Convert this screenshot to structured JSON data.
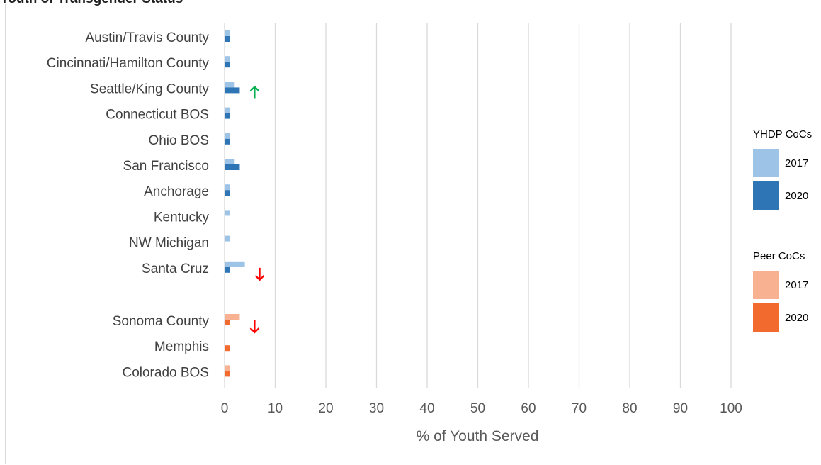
{
  "chart_data": {
    "type": "bar",
    "orientation": "horizontal",
    "title": "",
    "xlabel": "% of Youth Served",
    "ylabel": "",
    "xlim": [
      0,
      100
    ],
    "xticks": [
      "0",
      "10",
      "20",
      "30",
      "40",
      "50",
      "60",
      "70",
      "80",
      "90",
      "100"
    ],
    "grid": true,
    "legend_position": "right",
    "groups": [
      {
        "name": "YHDP CoCs",
        "series": [
          {
            "name": "2017",
            "color": "#9dc3e6"
          },
          {
            "name": "2020",
            "color": "#2e75b6"
          }
        ],
        "categories": [
          {
            "label": "Austin/Travis County",
            "v2017": 1,
            "v2020": 1,
            "trend": ""
          },
          {
            "label": "Cincinnati/Hamilton County",
            "v2017": 1,
            "v2020": 1,
            "trend": ""
          },
          {
            "label": "Seattle/King County",
            "v2017": 2,
            "v2020": 3,
            "trend": "up"
          },
          {
            "label": "Connecticut BOS",
            "v2017": 1,
            "v2020": 1,
            "trend": ""
          },
          {
            "label": "Ohio BOS",
            "v2017": 1,
            "v2020": 1,
            "trend": ""
          },
          {
            "label": "San Francisco",
            "v2017": 2,
            "v2020": 3,
            "trend": ""
          },
          {
            "label": "Anchorage",
            "v2017": 1,
            "v2020": 1,
            "trend": ""
          },
          {
            "label": "Kentucky",
            "v2017": 1,
            "v2020": 0,
            "trend": ""
          },
          {
            "label": "NW Michigan",
            "v2017": 1,
            "v2020": 0,
            "trend": ""
          },
          {
            "label": "Santa Cruz",
            "v2017": 4,
            "v2020": 1,
            "trend": "down"
          }
        ]
      },
      {
        "name": "Peer CoCs",
        "series": [
          {
            "name": "2017",
            "color": "#f8b191"
          },
          {
            "name": "2020",
            "color": "#f26a2e"
          }
        ],
        "categories": [
          {
            "label": "Sonoma County",
            "v2017": 3,
            "v2020": 1,
            "trend": "down"
          },
          {
            "label": "Memphis",
            "v2017": 0,
            "v2020": 1,
            "trend": ""
          },
          {
            "label": "Colorado BOS",
            "v2017": 1,
            "v2020": 1,
            "trend": ""
          }
        ]
      }
    ],
    "trend_colors": {
      "up": "#00b050",
      "down": "#ff0000"
    }
  },
  "header": {
    "partial_title": "Youth of Transgender Status"
  }
}
